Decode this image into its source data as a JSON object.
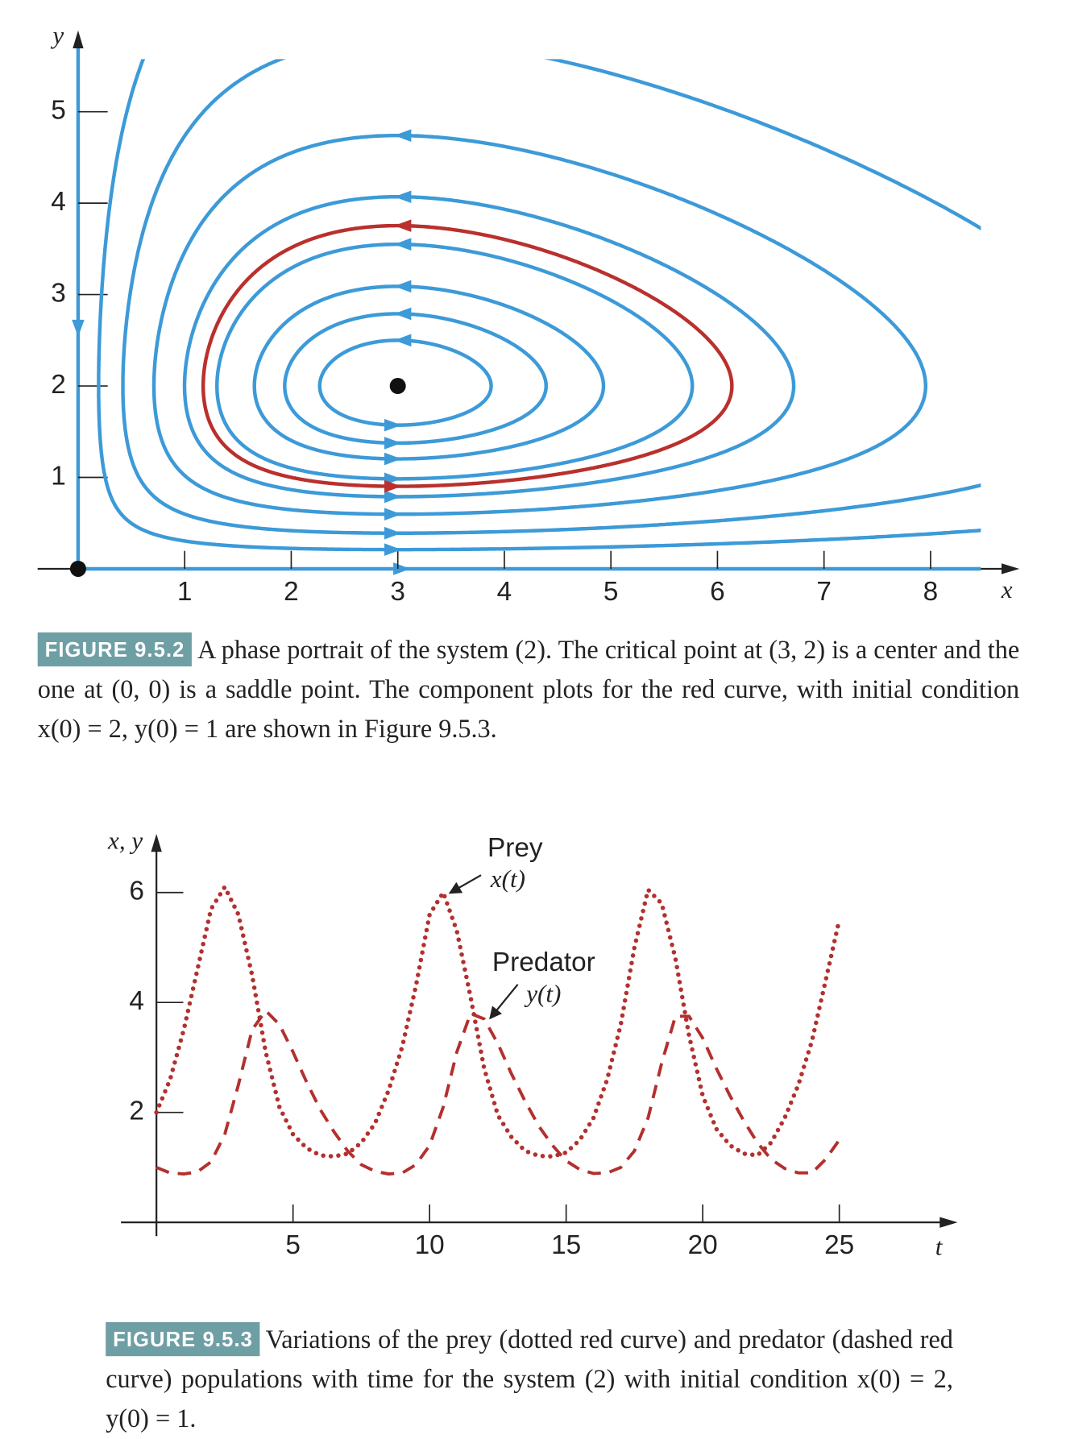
{
  "chart_data": [
    {
      "type": "phase_portrait",
      "xlabel": "x",
      "ylabel": "y",
      "xlim": [
        -0.38,
        8.8
      ],
      "ylim": [
        0,
        5.85
      ],
      "xticks": [
        1,
        2,
        3,
        4,
        5,
        6,
        7,
        8
      ],
      "yticks": [
        1,
        2,
        3,
        4,
        5
      ],
      "critical_points": {
        "x": [
          3,
          0
        ],
        "y": [
          2,
          0
        ]
      },
      "trajectories": {
        "x0": [
          3,
          3,
          3,
          3,
          3,
          3,
          3,
          3,
          2
        ],
        "y0": [
          4.74,
          4.07,
          3.55,
          3.09,
          2.79,
          2.5,
          0.39,
          0.21,
          1
        ],
        "colors": [
          "#3d9ad8",
          "#3d9ad8",
          "#3d9ad8",
          "#3d9ad8",
          "#3d9ad8",
          "#3d9ad8",
          "#3d9ad8",
          "#3d9ad8",
          "#b9302d"
        ]
      },
      "figure_label": "FIGURE 9.5.2",
      "caption": "A phase portrait of the system (2). The critical point at (3, 2) is a center and the one at (0, 0) is a saddle point. The component plots for the red curve, with initial condition x(0) = 2, y(0) = 1 are shown in Figure 9.5.3."
    },
    {
      "type": "line",
      "xlabel": "t",
      "ylabel": "x, y",
      "xlim": [
        -1.3,
        29.2
      ],
      "ylim": [
        -0.25,
        7
      ],
      "xticks": [
        5,
        10,
        15,
        20,
        25
      ],
      "yticks": [
        2,
        4,
        6
      ],
      "x": [
        0,
        0.5,
        1,
        1.5,
        2,
        2.5,
        3,
        3.5,
        4,
        4.5,
        5,
        5.5,
        6,
        6.5,
        7,
        7.5,
        8,
        8.5,
        9,
        9.5,
        10,
        10.5,
        11,
        11.5,
        12,
        12.5,
        13,
        13.5,
        14,
        14.5,
        15,
        15.5,
        16,
        16.5,
        17,
        17.5,
        18,
        18.5,
        19,
        19.5,
        20,
        20.5,
        21,
        21.5,
        22,
        22.5,
        23,
        23.5,
        24,
        24.5,
        25
      ],
      "series": [
        {
          "color": "#b3302e",
          "style": "dotted",
          "values": [
            2.0,
            2.6,
            3.5,
            4.6,
            5.7,
            6.1,
            5.6,
            4.5,
            3.1,
            2.1,
            1.6,
            1.35,
            1.22,
            1.2,
            1.25,
            1.45,
            1.8,
            2.4,
            3.2,
            4.3,
            5.6,
            6.0,
            5.3,
            4.1,
            2.8,
            1.95,
            1.55,
            1.3,
            1.21,
            1.2,
            1.27,
            1.5,
            1.9,
            2.6,
            3.6,
            5.0,
            6.05,
            5.8,
            4.8,
            3.4,
            2.3,
            1.7,
            1.4,
            1.25,
            1.22,
            1.45,
            1.9,
            2.5,
            3.3,
            4.4,
            5.5
          ]
        },
        {
          "color": "#b3302e",
          "style": "dashed",
          "values": [
            1.0,
            0.9,
            0.88,
            0.92,
            1.1,
            1.6,
            2.5,
            3.5,
            3.85,
            3.6,
            3.1,
            2.55,
            2.05,
            1.65,
            1.3,
            1.05,
            0.93,
            0.88,
            0.9,
            1.05,
            1.4,
            2.1,
            3.1,
            3.8,
            3.7,
            3.25,
            2.7,
            2.2,
            1.75,
            1.4,
            1.12,
            0.96,
            0.89,
            0.9,
            1.0,
            1.3,
            1.9,
            2.9,
            3.75,
            3.75,
            3.35,
            2.8,
            2.3,
            1.85,
            1.45,
            1.15,
            0.98,
            0.9,
            0.9,
            1.15,
            1.5
          ]
        }
      ],
      "annotations": [
        "Prey",
        "x(t)",
        "Predator",
        "y(t)"
      ],
      "figure_label": "FIGURE 9.5.3",
      "caption": "Variations of the prey (dotted red curve) and predator (dashed red curve) populations with time for the system (2) with initial condition x(0) = 2, y(0) = 1."
    }
  ]
}
